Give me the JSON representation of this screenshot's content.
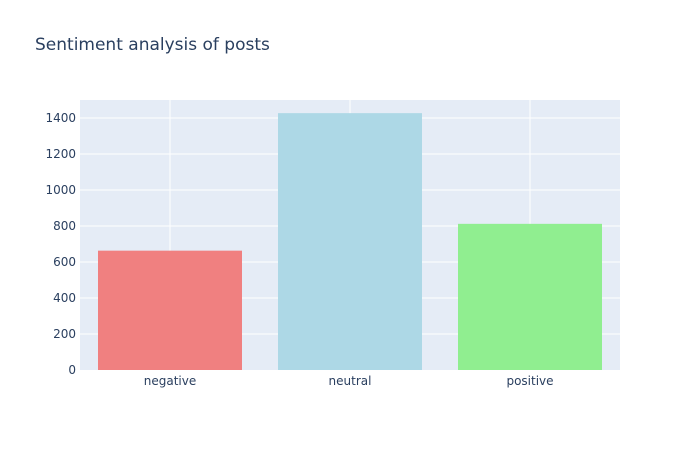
{
  "chart_data": {
    "type": "bar",
    "title": "Sentiment analysis of posts",
    "xlabel": "",
    "ylabel": "",
    "categories": [
      "negative",
      "neutral",
      "positive"
    ],
    "values": [
      663,
      1427,
      812
    ],
    "colors": [
      "#f08080",
      "#add8e6",
      "#90ee90"
    ],
    "ylim": [
      0,
      1500
    ],
    "yticks": [
      0,
      200,
      400,
      600,
      800,
      1000,
      1200,
      1400
    ],
    "grid": true,
    "plot_background": "#e5ecf6",
    "legend": "none"
  }
}
